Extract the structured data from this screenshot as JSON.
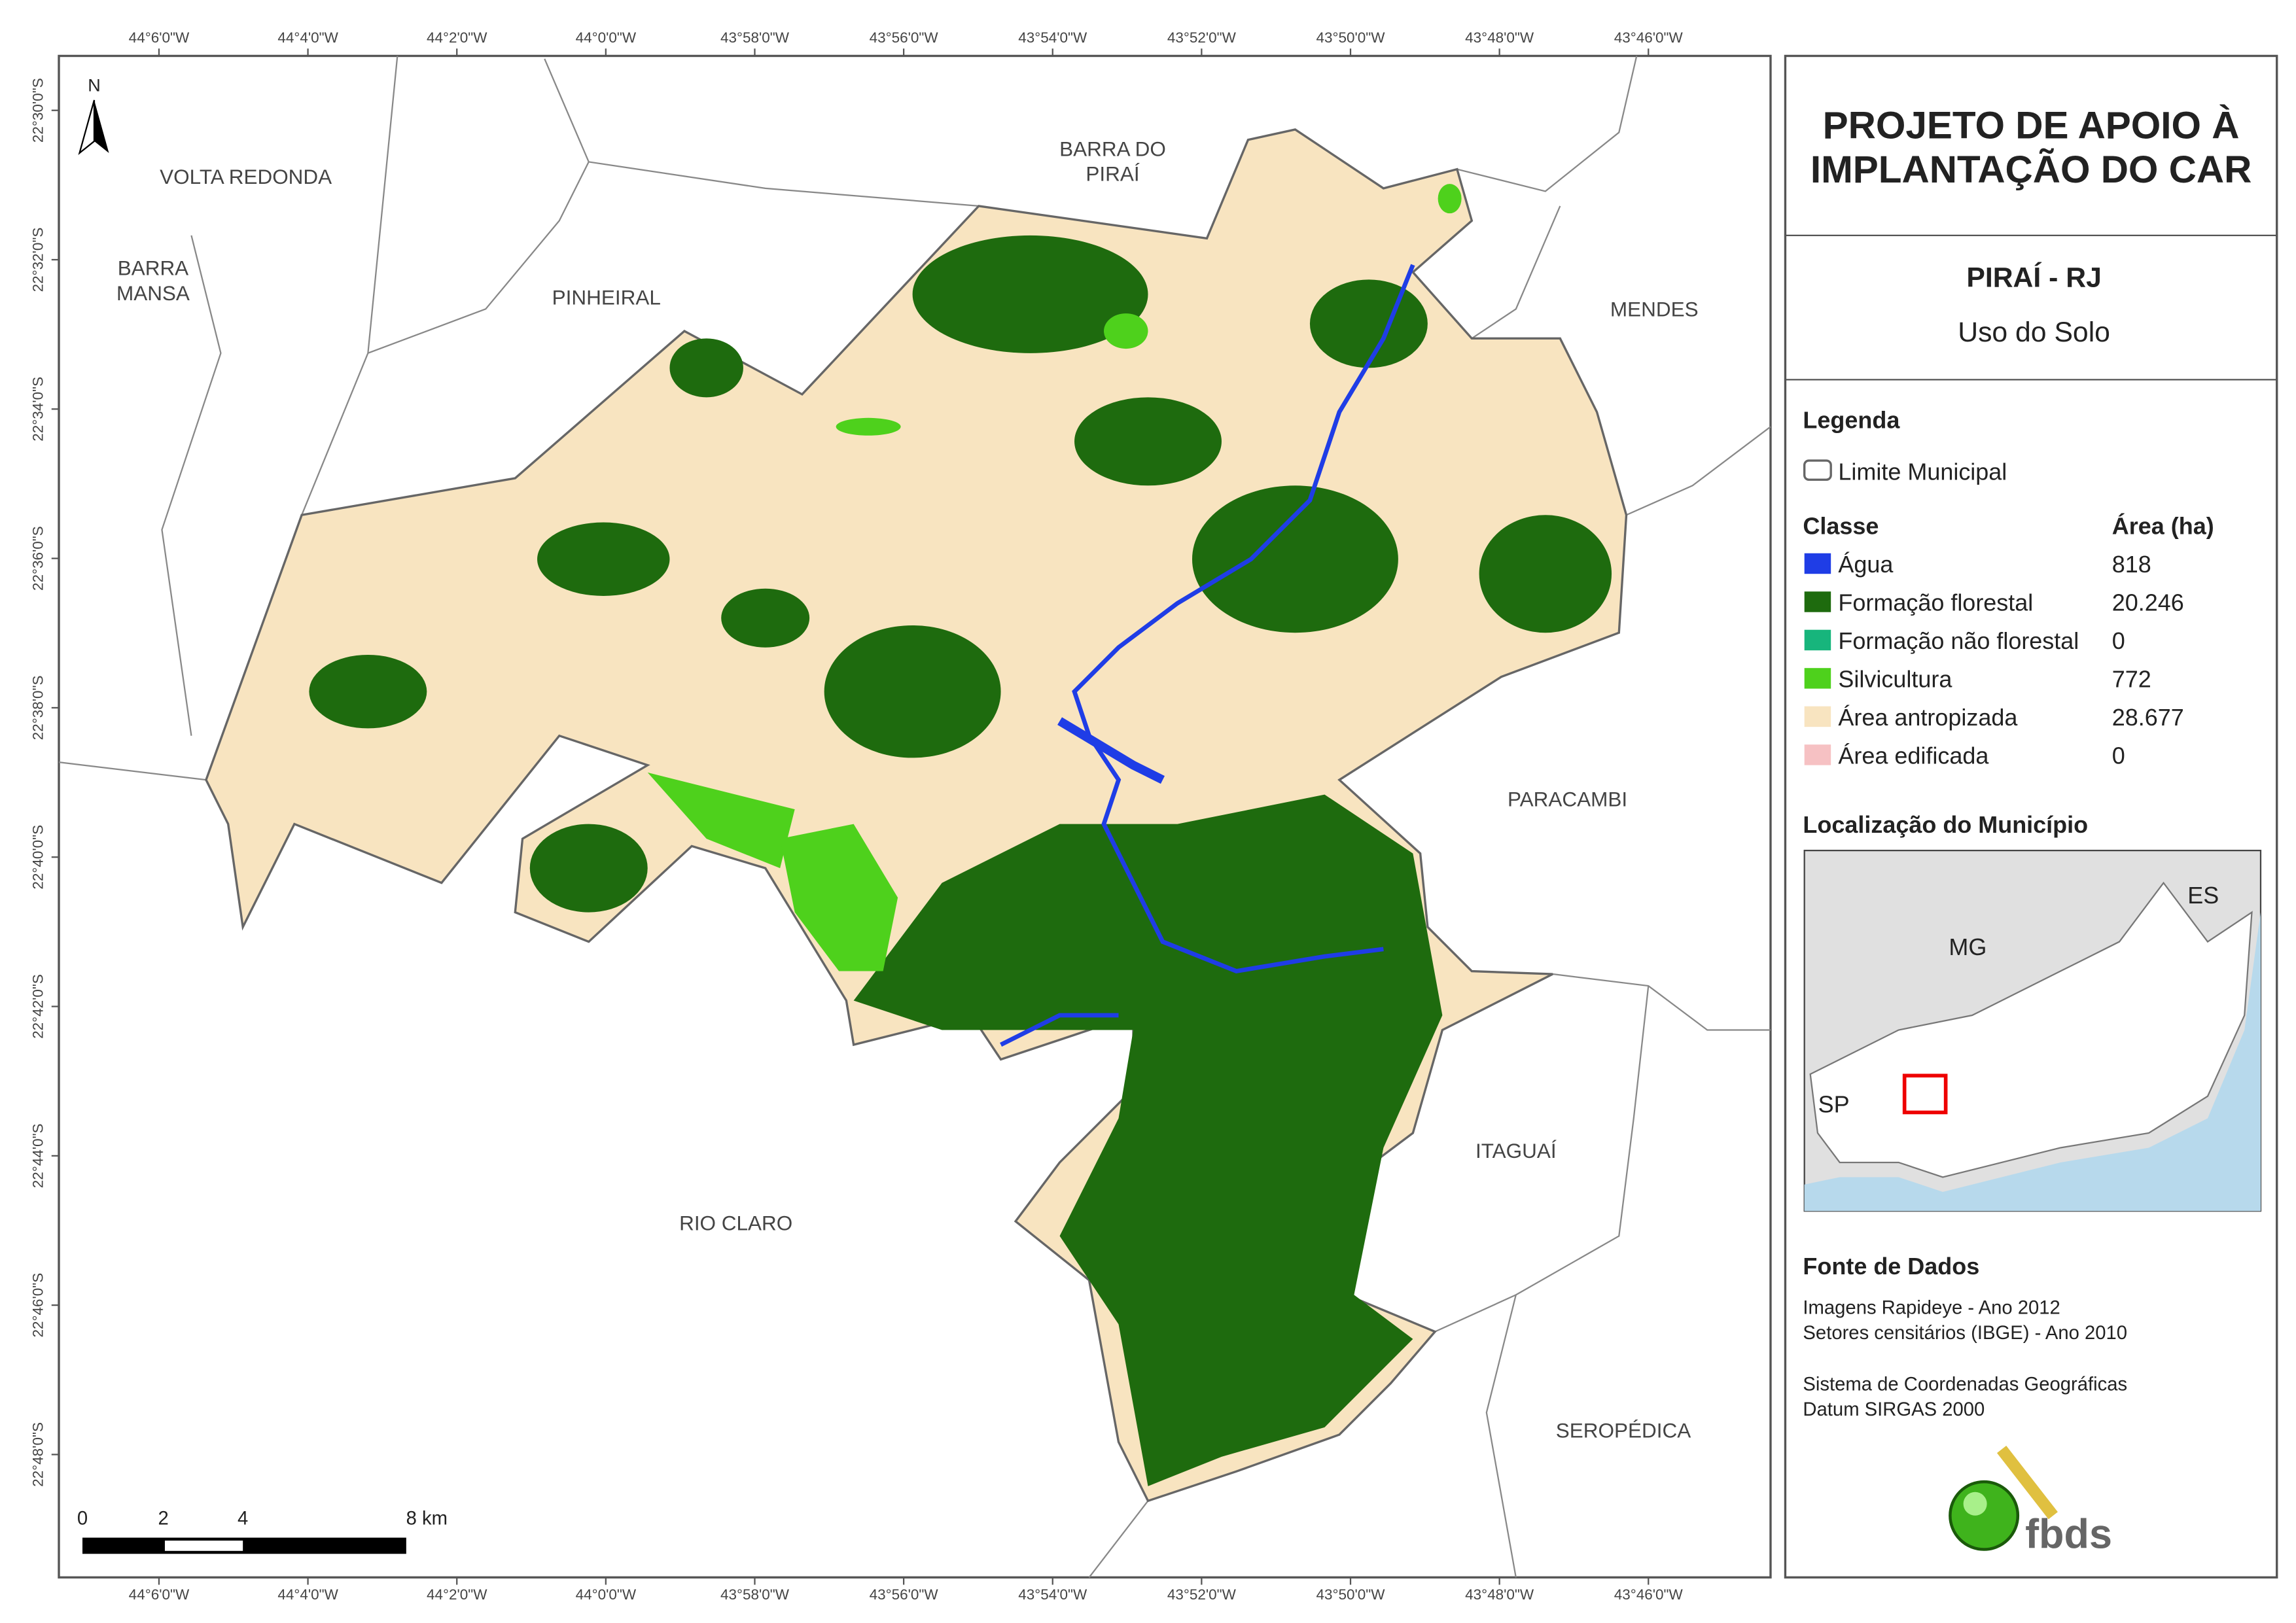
{
  "header": {
    "title": [
      "PROJETO DE APOIO À",
      "IMPLANTAÇÃO DO CAR"
    ],
    "municipality": "PIRAÍ - RJ",
    "subtitle": "Uso do Solo"
  },
  "legend": {
    "title": "Legenda",
    "boundary": "Limite Municipal",
    "class_header": "Classe",
    "area_header": "Área (ha)",
    "classes": [
      {
        "name": "Água",
        "color": "#1f3de6",
        "area": "818"
      },
      {
        "name": "Formação florestal",
        "color": "#1e6b0e",
        "area": "20.246"
      },
      {
        "name": "Formação não florestal",
        "color": "#17b57c",
        "area": "0"
      },
      {
        "name": "Silvicultura",
        "color": "#4ed11c",
        "area": "772"
      },
      {
        "name": "Área antropizada",
        "color": "#f8e4c0",
        "area": "28.677"
      },
      {
        "name": "Área edificada",
        "color": "#f6c1c3",
        "area": "0"
      }
    ]
  },
  "location": {
    "title": "Localização do Município",
    "labels": [
      "ES",
      "MG",
      "SP"
    ]
  },
  "sources": {
    "title": "Fonte de Dados",
    "lines": [
      "Imagens Rapideye - Ano 2012",
      "Setores censitários (IBGE) - Ano 2010",
      "Sistema de Coordenadas Geográficas",
      "Datum SIRGAS 2000"
    ]
  },
  "logo": "fbds",
  "map": {
    "north": "N",
    "x_labels": [
      "44°6'0\"W",
      "44°4'0\"W",
      "44°2'0\"W",
      "44°0'0\"W",
      "43°58'0\"W",
      "43°56'0\"W",
      "43°54'0\"W",
      "43°52'0\"W",
      "43°50'0\"W",
      "43°48'0\"W",
      "43°46'0\"W"
    ],
    "y_labels": [
      "22°30'0\"S",
      "22°32'0\"S",
      "22°34'0\"S",
      "22°36'0\"S",
      "22°38'0\"S",
      "22°40'0\"S",
      "22°42'0\"S",
      "22°44'0\"S",
      "22°46'0\"S",
      "22°48'0\"S"
    ],
    "places": [
      [
        "VOLTA REDONDA"
      ],
      [
        "BARRA",
        "MANSA"
      ],
      [
        "PINHEIRAL"
      ],
      [
        "BARRA DO",
        "PIRAÍ"
      ],
      [
        "MENDES"
      ],
      [
        "PARACAMBI"
      ],
      [
        "ITAGUAÍ"
      ],
      [
        "RIO CLARO"
      ],
      [
        "SEROPÉDICA"
      ]
    ],
    "scale": [
      "0",
      "2",
      "4",
      "8 km"
    ]
  }
}
